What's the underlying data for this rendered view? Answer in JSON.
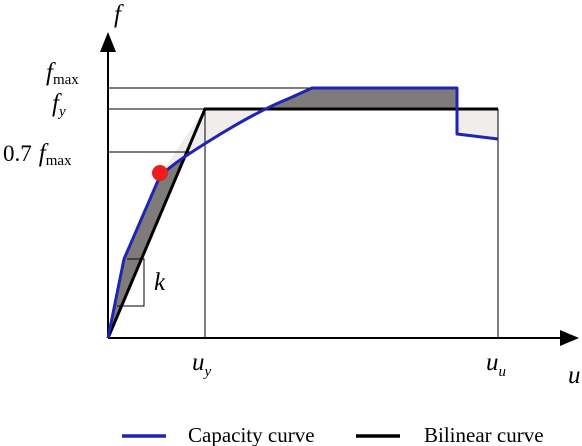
{
  "axes": {
    "y_symbol": "f",
    "x_symbol": "u"
  },
  "y_labels": {
    "fmax_base": "f",
    "fmax_sub": "max",
    "fy_base": "f",
    "fy_sub": "y",
    "coef": "0.7",
    "c07_base": "f",
    "c07_sub": "max"
  },
  "x_labels": {
    "uy_base": "u",
    "uy_sub": "y",
    "uu_base": "u",
    "uu_sub": "u"
  },
  "stiffness_label": "k",
  "legend": {
    "capacity": "Capacity curve",
    "bilinear": "Bilinear curve"
  },
  "colors": {
    "capacity_curve": "#1f24b3",
    "bilinear_curve": "#000000",
    "dark_fill": "#7f7b7b",
    "light_fill": "#f1eded",
    "marker": "#ee1c1c"
  }
}
